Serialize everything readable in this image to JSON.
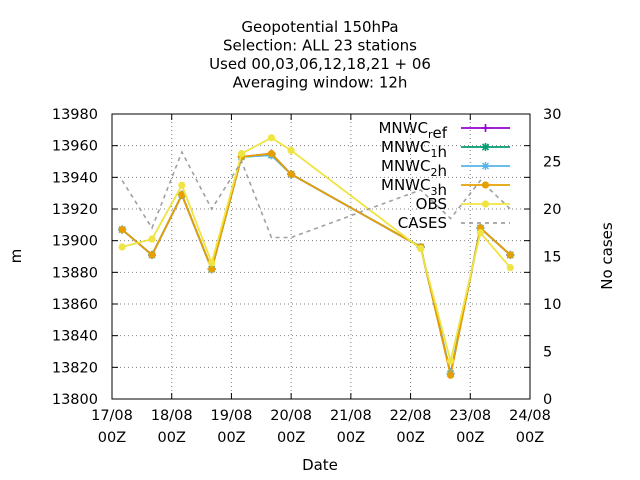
{
  "chart_data": {
    "type": "line",
    "title_lines": [
      "Geopotential 150hPa",
      "Selection: ALL      23 stations",
      "Used  00,03,06,12,18,21 + 06",
      "Averaging window: 12h"
    ],
    "xlabel": "Date",
    "ylabel": "m",
    "y2label": "No cases",
    "ylim": [
      13800,
      13980
    ],
    "y2lim": [
      0,
      30
    ],
    "xlim": [
      0,
      7
    ],
    "x_ticks": [
      0,
      1,
      2,
      3,
      4,
      5,
      6,
      7
    ],
    "x_tick_labels": [
      [
        "17/08",
        "00Z"
      ],
      [
        "18/08",
        "00Z"
      ],
      [
        "19/08",
        "00Z"
      ],
      [
        "20/08",
        "00Z"
      ],
      [
        "21/08",
        "00Z"
      ],
      [
        "22/08",
        "00Z"
      ],
      [
        "23/08",
        "00Z"
      ],
      [
        "24/08",
        "00Z"
      ]
    ],
    "y_ticks": [
      13800,
      13820,
      13840,
      13860,
      13880,
      13900,
      13920,
      13940,
      13960,
      13980
    ],
    "y2_ticks": [
      0,
      5,
      10,
      15,
      20,
      25,
      30
    ],
    "grid": true,
    "legend_position": "top-right",
    "x": [
      0.17,
      0.67,
      1.17,
      1.67,
      2.17,
      2.67,
      3.0,
      5.17,
      5.67,
      6.17,
      6.67
    ],
    "series": [
      {
        "name": "MNWC_ref",
        "label_parts": [
          [
            "MNWC",
            false
          ],
          [
            "r",
            true
          ],
          [
            "ef",
            false
          ]
        ],
        "color": "#9400d3",
        "marker": "plus",
        "axis": "y1",
        "dash": "",
        "values": [
          13907,
          13891,
          13929,
          13882,
          13953,
          13955,
          13942,
          13896,
          13816,
          13908,
          13891
        ]
      },
      {
        "name": "MNWC_1h",
        "label_parts": [
          [
            "MNWC",
            false
          ],
          [
            "1",
            true
          ],
          [
            "h",
            false
          ]
        ],
        "color": "#009e73",
        "marker": "cross",
        "axis": "y1",
        "dash": "",
        "values": [
          13907,
          13891,
          13929,
          13882,
          13953,
          13954,
          13942,
          13896,
          13816,
          13908,
          13891
        ]
      },
      {
        "name": "MNWC_2h",
        "label_parts": [
          [
            "MNWC",
            false
          ],
          [
            "2",
            true
          ],
          [
            "h",
            false
          ]
        ],
        "color": "#56b4e9",
        "marker": "star",
        "axis": "y1",
        "dash": "",
        "values": [
          13907,
          13891,
          13929,
          13882,
          13953,
          13954,
          13942,
          13896,
          13816,
          13908,
          13891
        ]
      },
      {
        "name": "MNWC_3h",
        "label_parts": [
          [
            "MNWC",
            false
          ],
          [
            "3",
            true
          ],
          [
            "h",
            false
          ]
        ],
        "color": "#e69f00",
        "marker": "circle",
        "axis": "y1",
        "dash": "",
        "values": [
          13907,
          13891,
          13929,
          13882,
          13953,
          13955,
          13942,
          13896,
          13815,
          13908,
          13891
        ]
      },
      {
        "name": "OBS",
        "label_parts": [
          [
            "OBS",
            false
          ]
        ],
        "color": "#f0e442",
        "marker": "circle",
        "axis": "y1",
        "dash": "",
        "values": [
          13896,
          13901,
          13935,
          13886,
          13955,
          13965,
          13957,
          13895,
          13824,
          13905,
          13883
        ]
      },
      {
        "name": "CASES",
        "label_parts": [
          [
            "CASES",
            false
          ]
        ],
        "color": "#a0a0a0",
        "marker": "none",
        "axis": "y2",
        "dash": "4,4",
        "values": [
          23,
          18,
          26,
          20,
          25,
          17,
          17,
          22,
          19,
          23,
          20
        ]
      }
    ]
  }
}
